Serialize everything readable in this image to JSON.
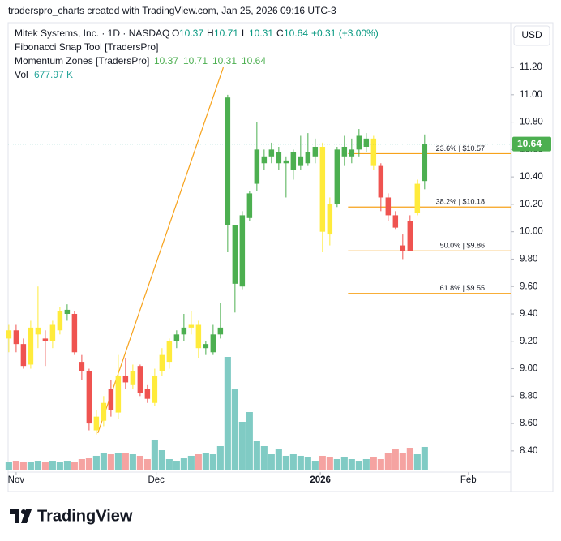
{
  "header": {
    "caption": "traderspro_charts created with TradingView.com, Jan 25, 2026 09:16 UTC-3",
    "change": "+0.31 (+3.00%)",
    "currency": "USD",
    "indicators": [
      "Fibonacci Snap Tool [TradersPro]",
      "Momentum Zones [TradersPro]"
    ],
    "ohlc_letters": [
      "O",
      "H",
      "L",
      "C"
    ],
    "vol_title": "Vol",
    "vol_label": "677.97 K"
  },
  "footer": {
    "brand": "TradingView"
  },
  "chart_data": {
    "type": "candlestick",
    "title": "Mitek Systems, Inc. · 1D · NASDAQ",
    "open": [
      9.22,
      9.28,
      9.18,
      9.03,
      9.25,
      9.22,
      9.2,
      9.28,
      9.4,
      9.4,
      9.05,
      8.98,
      8.55,
      8.62,
      8.85,
      8.68,
      8.95,
      8.88,
      9.02,
      8.85,
      8.75,
      8.98,
      9.05,
      9.2,
      9.25,
      9.3,
      9.32,
      9.15,
      9.12,
      9.25,
      10.05,
      9.62,
      9.6,
      10.1,
      10.35,
      10.5,
      10.55,
      10.5,
      10.5,
      10.45,
      10.48,
      10.5,
      10.55,
      10.62,
      10.2,
      10.2,
      10.55,
      10.55,
      10.6,
      10.62,
      10.68,
      10.48,
      10.25,
      10.12,
      9.9,
      10.08,
      10.14,
      10.37
    ],
    "high": [
      9.32,
      9.32,
      9.22,
      9.35,
      9.6,
      9.28,
      9.35,
      9.45,
      9.47,
      9.42,
      9.1,
      9.0,
      8.7,
      8.8,
      8.92,
      9.1,
      9.08,
      9.03,
      9.03,
      8.88,
      9.0,
      9.15,
      9.22,
      9.28,
      9.4,
      9.42,
      9.35,
      9.2,
      9.32,
      9.48,
      11.0,
      10.05,
      10.15,
      10.3,
      10.8,
      10.6,
      10.65,
      10.62,
      10.55,
      10.6,
      10.7,
      10.72,
      10.68,
      10.65,
      10.25,
      10.62,
      10.7,
      10.68,
      10.75,
      10.72,
      10.7,
      10.5,
      10.28,
      10.15,
      9.98,
      10.12,
      10.38,
      10.71
    ],
    "low": [
      9.12,
      9.12,
      9.0,
      9.0,
      9.15,
      9.02,
      9.15,
      9.25,
      9.35,
      9.1,
      8.92,
      8.55,
      8.52,
      8.58,
      8.65,
      8.63,
      8.85,
      8.85,
      8.8,
      8.75,
      8.73,
      8.95,
      9.0,
      9.15,
      9.2,
      9.25,
      9.08,
      9.1,
      9.1,
      9.22,
      9.85,
      9.41,
      9.58,
      10.08,
      10.3,
      10.45,
      10.5,
      10.45,
      10.25,
      10.38,
      10.45,
      10.48,
      10.5,
      9.85,
      9.9,
      10.18,
      10.48,
      10.5,
      10.55,
      10.58,
      10.45,
      10.15,
      10.08,
      10.02,
      9.8,
      9.86,
      10.12,
      10.31
    ],
    "close": [
      9.28,
      9.18,
      9.02,
      9.3,
      9.3,
      9.2,
      9.32,
      9.42,
      9.43,
      9.12,
      8.98,
      8.6,
      8.65,
      8.75,
      8.7,
      8.95,
      8.9,
      8.98,
      8.82,
      8.78,
      8.95,
      9.1,
      9.2,
      9.25,
      9.3,
      9.32,
      9.15,
      9.18,
      9.25,
      9.3,
      10.98,
      10.05,
      10.12,
      10.28,
      10.6,
      10.55,
      10.6,
      10.58,
      10.52,
      10.58,
      10.55,
      10.58,
      10.62,
      10.0,
      9.98,
      10.6,
      10.62,
      10.6,
      10.7,
      10.68,
      10.48,
      10.25,
      10.12,
      10.03,
      9.86,
      9.86,
      10.35,
      10.64
    ],
    "volume": [
      234,
      280,
      234,
      234,
      280,
      234,
      280,
      234,
      280,
      234,
      327,
      350,
      421,
      514,
      467,
      514,
      514,
      467,
      421,
      327,
      888,
      584,
      327,
      280,
      350,
      421,
      467,
      514,
      467,
      701,
      3271,
      2336,
      1402,
      1682,
      841,
      701,
      467,
      607,
      421,
      467,
      421,
      374,
      280,
      421,
      374,
      327,
      374,
      327,
      280,
      327,
      374,
      327,
      514,
      607,
      514,
      654,
      467,
      677.97
    ],
    "candle_colors": [
      "yellow",
      "red",
      "red",
      "yellow",
      "yellow",
      "red",
      "yellow",
      "yellow",
      "green",
      "red",
      "red",
      "red",
      "yellow",
      "yellow",
      "red",
      "yellow",
      "red",
      "yellow",
      "red",
      "red",
      "yellow",
      "yellow",
      "yellow",
      "green",
      "green",
      "yellow",
      "yellow",
      "green",
      "green",
      "green",
      "green",
      "green",
      "green",
      "green",
      "green",
      "green",
      "green",
      "green",
      "green",
      "green",
      "green",
      "green",
      "green",
      "yellow",
      "yellow",
      "green",
      "green",
      "green",
      "green",
      "green",
      "yellow",
      "red",
      "red",
      "red",
      "red",
      "red",
      "yellow",
      "green"
    ],
    "palette": {
      "green": "#4caf50",
      "red": "#ef5350",
      "yellow": "#ffeb3b"
    },
    "up_volume_color": "#80cbc4",
    "down_volume_color": "#f5a3a1",
    "last_price_color": "#26a69a",
    "trendline": {
      "color": "#f7a21b",
      "x": [
        12.2,
        29.4
      ],
      "values": [
        8.53,
        11.2
      ]
    },
    "fib_color": "#f7a21b",
    "fib_levels": [
      {
        "value": 10.57,
        "label": "23.6% | $10.57"
      },
      {
        "value": 10.18,
        "label": "38.2% | $10.18"
      },
      {
        "value": 9.86,
        "label": "50.0% | $9.86"
      },
      {
        "value": 9.55,
        "label": "61.8% | $9.55"
      }
    ],
    "fib_start": 46.5,
    "xlim": [
      -0.1,
      68.8
    ],
    "xticks": [
      {
        "value": 1,
        "label": "Nov"
      },
      {
        "value": 20.2,
        "label": "Dec"
      },
      {
        "value": 42.7,
        "label": "2026"
      },
      {
        "value": 63,
        "label": "Feb"
      }
    ],
    "ylim": [
      8.257,
      11.526
    ],
    "yticks": [
      {
        "value": 8.4,
        "label": "8.40"
      },
      {
        "value": 8.6,
        "label": "8.60"
      },
      {
        "value": 8.8,
        "label": "8.80"
      },
      {
        "value": 9.0,
        "label": "9.00"
      },
      {
        "value": 9.2,
        "label": "9.20"
      },
      {
        "value": 9.4,
        "label": "9.40"
      },
      {
        "value": 9.6,
        "label": "9.60"
      },
      {
        "value": 9.8,
        "label": "9.80"
      },
      {
        "value": 10.0,
        "label": "10.00"
      },
      {
        "value": 10.2,
        "label": "10.20"
      },
      {
        "value": 10.4,
        "label": "10.40"
      },
      {
        "value": 10.6,
        "label": "10.60"
      },
      {
        "value": 10.8,
        "label": "10.80"
      },
      {
        "value": 11.0,
        "label": "11.00"
      },
      {
        "value": 11.2,
        "label": "11.20"
      }
    ]
  }
}
